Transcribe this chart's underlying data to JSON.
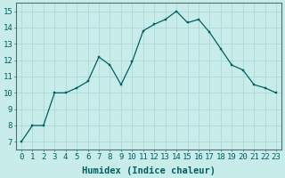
{
  "x": [
    0,
    1,
    2,
    3,
    4,
    5,
    6,
    7,
    8,
    9,
    10,
    11,
    12,
    13,
    14,
    15,
    16,
    17,
    18,
    19,
    20,
    21,
    22,
    23
  ],
  "y": [
    7,
    8,
    8,
    10,
    10,
    10.3,
    10.7,
    12.2,
    11.7,
    10.5,
    11.9,
    13.8,
    14.2,
    14.5,
    15,
    14.3,
    14.5,
    13.7,
    12.7,
    11.7,
    11.4,
    10.5,
    10.3,
    10
  ],
  "line_color": "#006060",
  "marker_color": "#006060",
  "bg_color": "#c8ecea",
  "grid_color": "#b0dbd8",
  "xlabel": "Humidex (Indice chaleur)",
  "xlim": [
    -0.5,
    23.5
  ],
  "ylim": [
    6.5,
    15.5
  ],
  "yticks": [
    7,
    8,
    9,
    10,
    11,
    12,
    13,
    14,
    15
  ],
  "xtick_labels": [
    "0",
    "1",
    "2",
    "3",
    "4",
    "5",
    "6",
    "7",
    "8",
    "9",
    "10",
    "11",
    "12",
    "13",
    "14",
    "15",
    "16",
    "17",
    "18",
    "19",
    "20",
    "21",
    "22",
    "23"
  ],
  "tick_color": "#006060",
  "xlabel_fontsize": 7.5,
  "tick_fontsize": 6.5
}
